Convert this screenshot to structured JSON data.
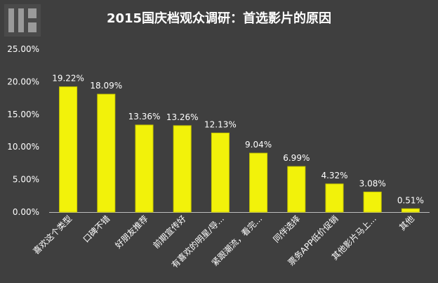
{
  "chart_data": {
    "type": "bar",
    "title": "2015国庆档观众调研：首选影片的原因",
    "categories": [
      "喜欢这个类型",
      "口碑不错",
      "好朋友推荐",
      "前期宣传好",
      "有喜欢的明星/导...",
      "紧跟潮流，看完...",
      "同伴选择",
      "票务APP低价促销",
      "其他影片马上...",
      "其他"
    ],
    "values": [
      19.22,
      18.09,
      13.36,
      13.26,
      12.13,
      9.04,
      6.99,
      4.32,
      3.08,
      0.51
    ],
    "value_labels": [
      "19.22%",
      "18.09%",
      "13.36%",
      "13.26%",
      "12.13%",
      "9.04%",
      "6.99%",
      "4.32%",
      "3.08%",
      "0.51%"
    ],
    "y_ticks": [
      "0.00%",
      "5.00%",
      "10.00%",
      "15.00%",
      "20.00%",
      "25.00%"
    ],
    "ylim": [
      0,
      25
    ],
    "xlabel": "",
    "ylabel": "",
    "grid": false,
    "legend": "none",
    "colors": {
      "background": "#3f3f3f",
      "bar_fill": "#f2f20a",
      "bar_stroke": "#c8c800",
      "text": "#ffffff",
      "title": "#ffffff",
      "axis": "#bdbdbd"
    }
  }
}
